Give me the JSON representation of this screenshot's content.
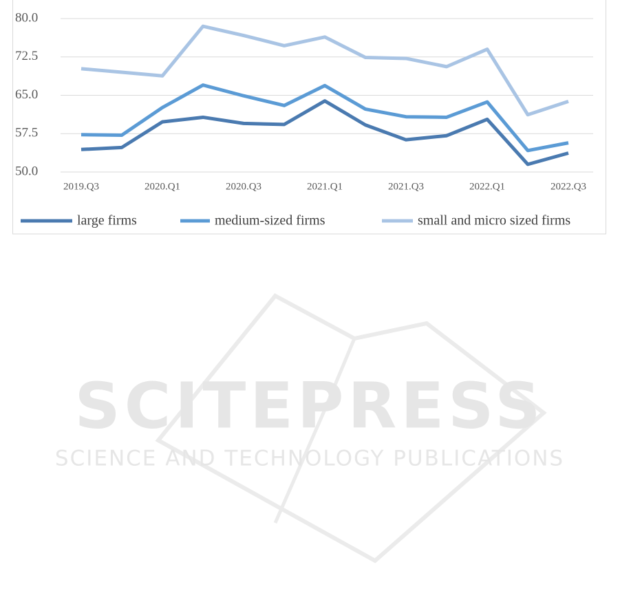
{
  "chart_data": {
    "type": "line",
    "categories": [
      "2019.Q3",
      null,
      "2020.Q1",
      null,
      "2020.Q3",
      null,
      "2021.Q1",
      null,
      "2021.Q3",
      null,
      "2022.Q1",
      null,
      "2022.Q3"
    ],
    "series": [
      {
        "name": "large firms",
        "color": "#4a7ab0",
        "values": [
          54.4,
          54.8,
          59.8,
          60.7,
          59.5,
          59.3,
          63.9,
          59.2,
          56.3,
          57.1,
          60.3,
          51.5,
          53.7
        ]
      },
      {
        "name": "medium-sized firms",
        "color": "#5b9bd5",
        "values": [
          57.3,
          57.2,
          62.6,
          67.0,
          64.9,
          63.0,
          66.9,
          62.3,
          60.8,
          60.7,
          63.7,
          54.2,
          55.7
        ]
      },
      {
        "name": "small and micro sized firms",
        "color": "#a9c4e4",
        "values": [
          70.2,
          69.5,
          68.8,
          78.5,
          76.7,
          74.7,
          76.4,
          72.4,
          72.2,
          70.6,
          74.0,
          61.2,
          63.8
        ]
      }
    ],
    "ylim": [
      50,
      80
    ],
    "yticks": [
      {
        "value": 50,
        "label": "50.0"
      },
      57.5,
      {
        "value": 65,
        "label": "65.0"
      },
      72.5,
      {
        "value": 80,
        "label": "80.0"
      }
    ],
    "grid": true,
    "legend": "bottom"
  },
  "watermark": {
    "title": "SCITEPRESS",
    "subtitle": "SCIENCE AND TECHNOLOGY PUBLICATIONS"
  }
}
